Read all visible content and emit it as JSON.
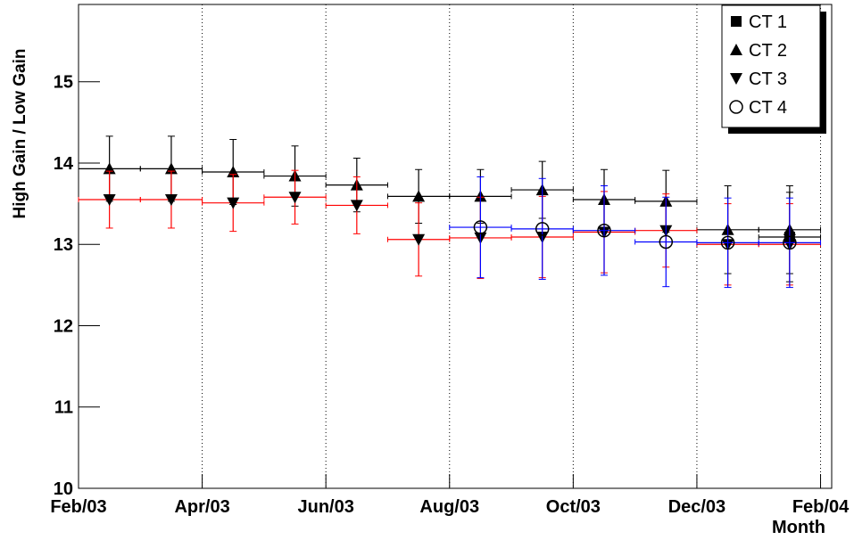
{
  "chart_data": {
    "type": "errorbar",
    "y_label": "High Gain / Low Gain",
    "x_label": "Month",
    "x": [
      0.5,
      1.5,
      2.5,
      3.5,
      4.5,
      5.5,
      6.5,
      7.5,
      8.5,
      9.5,
      10.5,
      11.5
    ],
    "xerr": 0.5,
    "xlim": [
      0,
      12.18
    ],
    "ylim": [
      10,
      15.95
    ],
    "xticks": [
      {
        "value": 0,
        "label": "Feb/03"
      },
      {
        "value": 2,
        "label": "Apr/03"
      },
      {
        "value": 4,
        "label": "Jun/03"
      },
      {
        "value": 6,
        "label": "Aug/03"
      },
      {
        "value": 8,
        "label": "Oct/03"
      },
      {
        "value": 10,
        "label": "Dec/03"
      },
      {
        "value": 12,
        "label": "Feb/04"
      }
    ],
    "yticks": [
      10,
      11,
      12,
      13,
      14,
      15
    ],
    "x_grid": true,
    "legend": "top-right",
    "series": [
      {
        "name": "CT 1",
        "color": "#000000",
        "marker": "square",
        "values": [
          null,
          null,
          null,
          null,
          null,
          null,
          null,
          null,
          null,
          null,
          null,
          13.09
        ],
        "errors": [
          null,
          null,
          null,
          null,
          null,
          null,
          null,
          null,
          null,
          null,
          null,
          0.55
        ]
      },
      {
        "name": "CT 2",
        "color": "#000000",
        "marker": "triangle-up",
        "values": [
          13.93,
          13.93,
          13.89,
          13.84,
          13.73,
          13.59,
          13.59,
          13.67,
          13.55,
          13.53,
          13.18,
          13.18
        ],
        "errors": [
          0.4,
          0.4,
          0.4,
          0.37,
          0.33,
          0.33,
          0.33,
          0.35,
          0.37,
          0.38,
          0.54,
          0.54
        ]
      },
      {
        "name": "CT 3",
        "color": "#ff0000",
        "marker": "triangle-down",
        "values": [
          13.55,
          13.55,
          13.51,
          13.58,
          13.48,
          13.06,
          13.08,
          13.09,
          13.15,
          13.17,
          13.0,
          13.0
        ],
        "errors": [
          0.35,
          0.35,
          0.35,
          0.33,
          0.35,
          0.45,
          0.5,
          0.5,
          0.5,
          0.45,
          0.5,
          0.5
        ]
      },
      {
        "name": "CT 4",
        "color": "#0000ff",
        "marker": "circle-open",
        "values": [
          null,
          null,
          null,
          null,
          null,
          null,
          13.21,
          13.19,
          13.17,
          13.03,
          13.02,
          13.02
        ],
        "errors": [
          null,
          null,
          null,
          null,
          null,
          null,
          0.62,
          0.62,
          0.55,
          0.55,
          0.55,
          0.55
        ]
      }
    ]
  }
}
